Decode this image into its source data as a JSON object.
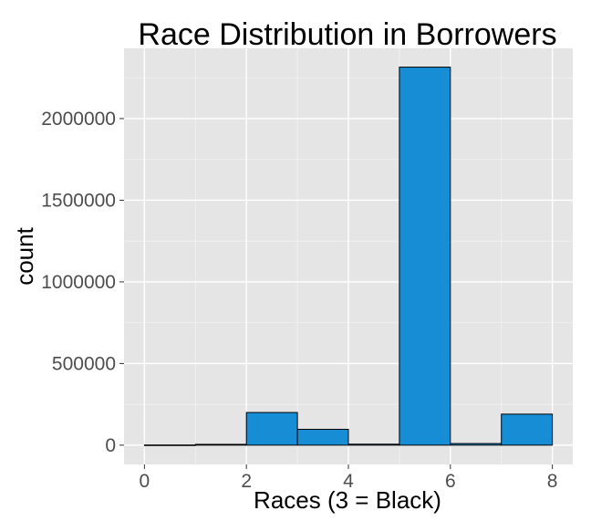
{
  "chart_data": {
    "type": "bar",
    "title": "Race Distribution in Borrowers",
    "xlabel": "Races (3 = Black)",
    "ylabel": "count",
    "bin_width": 1,
    "bins": [
      {
        "x_start": 0,
        "x_end": 1,
        "count": 1000
      },
      {
        "x_start": 1,
        "x_end": 2,
        "count": 5000
      },
      {
        "x_start": 2,
        "x_end": 3,
        "count": 200000
      },
      {
        "x_start": 3,
        "x_end": 4,
        "count": 97000
      },
      {
        "x_start": 4,
        "x_end": 5,
        "count": 6000
      },
      {
        "x_start": 5,
        "x_end": 6,
        "count": 2315000
      },
      {
        "x_start": 6,
        "x_end": 7,
        "count": 10000
      },
      {
        "x_start": 7,
        "x_end": 8,
        "count": 190000
      }
    ],
    "xlim": [
      -0.4,
      8.4
    ],
    "ylim": [
      -118000,
      2430000
    ],
    "x_ticks": [
      "0",
      "2",
      "4",
      "6",
      "8"
    ],
    "x_tick_values": [
      0,
      2,
      4,
      6,
      8
    ],
    "y_ticks": [
      "0",
      "500000",
      "1000000",
      "1500000",
      "2000000"
    ],
    "y_tick_values": [
      0,
      500000,
      1000000,
      1500000,
      2000000
    ],
    "grid": true,
    "colors": {
      "panel_background": "#e5e5e5",
      "grid_major": "#ffffff",
      "grid_minor": "#f2f2f2",
      "bar_fill": "#168dd4",
      "bar_outline": "#000000",
      "tick_label": "#4d4d4d"
    }
  }
}
